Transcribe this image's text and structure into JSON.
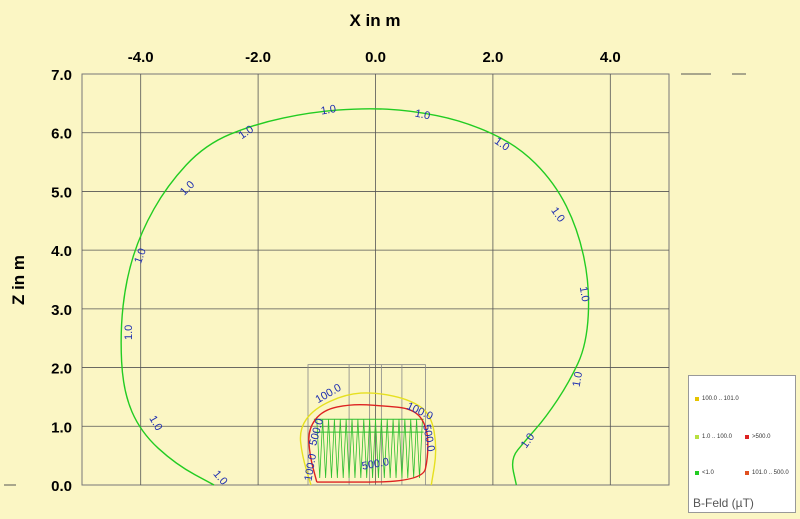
{
  "chart_data": {
    "type": "contour",
    "title": "",
    "xlabel": "X in m",
    "ylabel": "Z in m",
    "xlim": [
      -5.0,
      5.0
    ],
    "ylim": [
      0.0,
      7.0
    ],
    "x_ticks": [
      "-4.0",
      "-2.0",
      "0.0",
      "2.0",
      "4.0"
    ],
    "y_ticks": [
      "0.0",
      "1.0",
      "2.0",
      "3.0",
      "4.0",
      "5.0",
      "6.0",
      "7.0"
    ],
    "grid": true,
    "contours": [
      {
        "level": "1.0",
        "color": "#22cc22",
        "points": [
          [
            -2.75,
            0.0
          ],
          [
            -3.4,
            0.35
          ],
          [
            -4.0,
            0.9
          ],
          [
            -4.3,
            1.6
          ],
          [
            -4.35,
            2.6
          ],
          [
            -4.25,
            3.5
          ],
          [
            -4.0,
            4.3
          ],
          [
            -3.55,
            5.1
          ],
          [
            -2.9,
            5.8
          ],
          [
            -2.05,
            6.15
          ],
          [
            -1.1,
            6.35
          ],
          [
            -0.2,
            6.42
          ],
          [
            0.6,
            6.38
          ],
          [
            1.5,
            6.2
          ],
          [
            2.4,
            5.8
          ],
          [
            3.05,
            5.15
          ],
          [
            3.45,
            4.35
          ],
          [
            3.65,
            3.4
          ],
          [
            3.6,
            2.4
          ],
          [
            3.3,
            1.75
          ],
          [
            2.9,
            1.15
          ],
          [
            2.55,
            0.75
          ],
          [
            2.3,
            0.45
          ],
          [
            2.4,
            0.0
          ]
        ]
      },
      {
        "level": "100.0",
        "color": "#e6e020",
        "points": [
          [
            -1.1,
            0.0
          ],
          [
            -1.25,
            0.5
          ],
          [
            -1.3,
            0.95
          ],
          [
            -1.05,
            1.3
          ],
          [
            -0.5,
            1.55
          ],
          [
            0.0,
            1.58
          ],
          [
            0.6,
            1.45
          ],
          [
            0.95,
            1.2
          ],
          [
            1.05,
            0.6
          ],
          [
            0.95,
            0.0
          ]
        ]
      },
      {
        "level": "500.0",
        "color": "#dd2222",
        "points": [
          [
            -1.0,
            0.05
          ],
          [
            -1.12,
            0.5
          ],
          [
            -1.15,
            0.95
          ],
          [
            -0.9,
            1.28
          ],
          [
            -0.4,
            1.38
          ],
          [
            0.1,
            1.35
          ],
          [
            0.65,
            1.3
          ],
          [
            0.88,
            1.0
          ],
          [
            0.9,
            0.5
          ],
          [
            0.8,
            0.05
          ],
          [
            -1.0,
            0.05
          ]
        ]
      }
    ],
    "contour_labels": [
      {
        "text": "1.0",
        "x": -0.8,
        "y": 6.38,
        "rotate": -10
      },
      {
        "text": "1.0",
        "x": 0.8,
        "y": 6.3,
        "rotate": 12
      },
      {
        "text": "1.0",
        "x": -2.2,
        "y": 6.0,
        "rotate": -35
      },
      {
        "text": "1.0",
        "x": 2.15,
        "y": 5.8,
        "rotate": 35
      },
      {
        "text": "1.0",
        "x": -3.2,
        "y": 5.05,
        "rotate": -45
      },
      {
        "text": "1.0",
        "x": 3.1,
        "y": 4.6,
        "rotate": 55
      },
      {
        "text": "1.0",
        "x": -4.0,
        "y": 3.9,
        "rotate": -70
      },
      {
        "text": "1.0",
        "x": 3.55,
        "y": 3.25,
        "rotate": 80
      },
      {
        "text": "1.0",
        "x": -4.2,
        "y": 2.6,
        "rotate": -90
      },
      {
        "text": "1.0",
        "x": 3.45,
        "y": 1.8,
        "rotate": -80
      },
      {
        "text": "1.0",
        "x": -3.75,
        "y": 1.05,
        "rotate": 60
      },
      {
        "text": "1.0",
        "x": 2.6,
        "y": 0.75,
        "rotate": -55
      },
      {
        "text": "1.0",
        "x": -2.65,
        "y": 0.12,
        "rotate": 50
      },
      {
        "text": "100.0",
        "x": -0.8,
        "y": 1.55,
        "rotate": -30
      },
      {
        "text": "100.0",
        "x": 0.75,
        "y": 1.25,
        "rotate": 25
      },
      {
        "text": "500.0",
        "x": -1.0,
        "y": 0.9,
        "rotate": -75
      },
      {
        "text": "500.0",
        "x": 0.9,
        "y": 0.8,
        "rotate": 80
      },
      {
        "text": "500.0",
        "x": 0.0,
        "y": 0.35,
        "rotate": -10
      },
      {
        "text": "100.0",
        "x": -1.1,
        "y": 0.3,
        "rotate": -80
      }
    ],
    "legend": {
      "title": "B-Feld (µT)",
      "placement": "bottom-right",
      "entries": [
        {
          "label": "100.0 .. 101.0",
          "color": "#e6c400"
        },
        {
          "label": "1.0 .. 100.0",
          "color": "#b8e040"
        },
        {
          ">500.0": "",
          "label": ">500.0",
          "color": "#dd2222"
        },
        {
          "label": "<1.0",
          "color": "#22cc22"
        },
        {
          "label": "101.0 .. 500.0",
          "color": "#e05020"
        }
      ]
    }
  }
}
